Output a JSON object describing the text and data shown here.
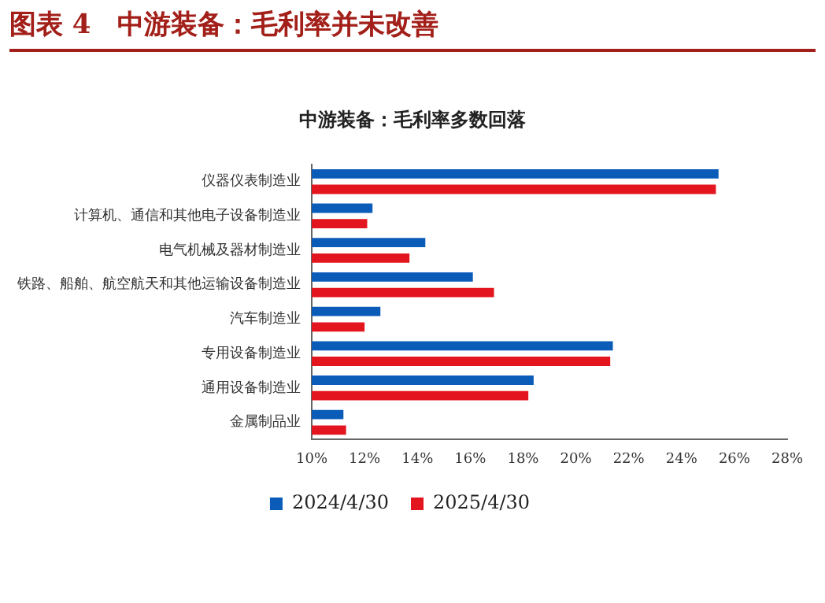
{
  "chart_data": {
    "type": "bar",
    "orientation": "horizontal",
    "title": "图表 4　中游装备：毛利率并未改善",
    "subtitle": "中游装备：毛利率多数回落",
    "categories": [
      "仪器仪表制造业",
      "计算机、通信和其他电子设备制造业",
      "电气机械及器材制造业",
      "铁路、船舶、航空航天和其他运输设备制造业",
      "汽车制造业",
      "专用设备制造业",
      "通用设备制造业",
      "金属制品业"
    ],
    "series": [
      {
        "name": "2024/4/30",
        "color": "#0a5cb8",
        "values": [
          25.4,
          12.3,
          14.3,
          16.1,
          12.6,
          21.4,
          18.4,
          11.2
        ]
      },
      {
        "name": "2025/4/30",
        "color": "#e3151e",
        "values": [
          25.3,
          12.1,
          13.7,
          16.9,
          12.0,
          21.3,
          18.2,
          11.3
        ]
      }
    ],
    "xlim": [
      10,
      28
    ],
    "xticks": [
      {
        "value": 10,
        "label": "10%"
      },
      {
        "value": 12,
        "label": "12%"
      },
      {
        "value": 14,
        "label": "14%"
      },
      {
        "value": 16,
        "label": "16%"
      },
      {
        "value": 18,
        "label": "18%"
      },
      {
        "value": 20,
        "label": "20%"
      },
      {
        "value": 22,
        "label": "22%"
      },
      {
        "value": 24,
        "label": "24%"
      },
      {
        "value": 26,
        "label": "26%"
      },
      {
        "value": 28,
        "label": "28%"
      }
    ],
    "grid": false,
    "legend": "bottom"
  }
}
